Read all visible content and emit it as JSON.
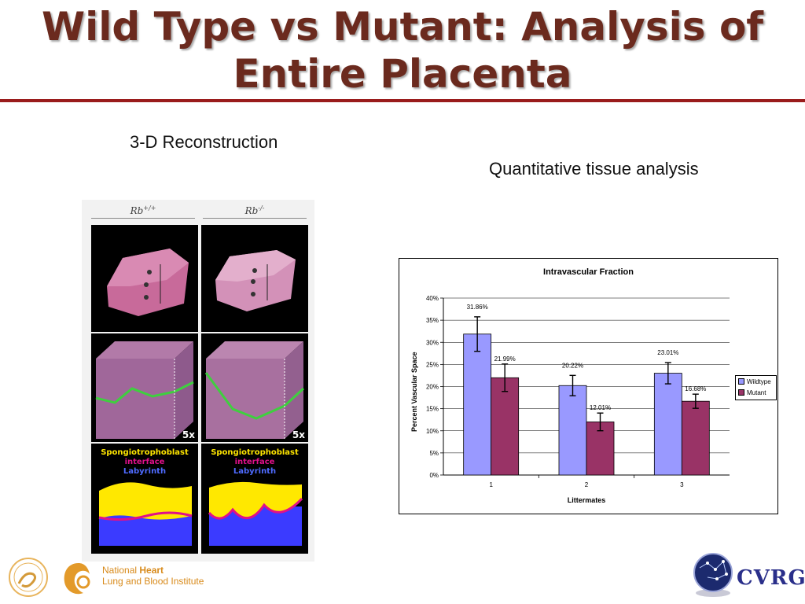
{
  "slide": {
    "title_line1": "Wild Type vs Mutant: Analysis of",
    "title_line2": "Entire Placenta",
    "label_3d": "3-D Reconstruction",
    "label_quant": "Quantitative tissue analysis"
  },
  "figure": {
    "col_wt_base": "Rb",
    "col_wt_sup": "+/+",
    "col_mut_base": "Rb",
    "col_mut_sup": "-/-",
    "scale_left": "5x",
    "scale_right": "5x",
    "legend_spongio": "Spongiotrophoblast",
    "legend_interface": "interface",
    "legend_labyrinth": "Labyrinth"
  },
  "colors": {
    "title": "#6b2a1e",
    "rule": "#9a1c1c",
    "wildtype": "#9999ff",
    "mutant": "#993366"
  },
  "chart_data": {
    "type": "bar",
    "title": "Intravascular Fraction",
    "xlabel": "Littermates",
    "ylabel": "Percent Vascular Space",
    "categories": [
      "1",
      "2",
      "3"
    ],
    "ylim": [
      0,
      40
    ],
    "yticks": [
      "0%",
      "5%",
      "10%",
      "15%",
      "20%",
      "25%",
      "30%",
      "35%",
      "40%"
    ],
    "grid": true,
    "legend_position": "right",
    "series": [
      {
        "name": "Wildtype",
        "values": [
          31.86,
          20.22,
          23.01
        ],
        "labels": [
          "31.86%",
          "20.22%",
          "23.01%"
        ],
        "error": [
          3.9,
          2.3,
          2.4
        ]
      },
      {
        "name": "Mutant",
        "values": [
          21.99,
          12.01,
          16.68
        ],
        "labels": [
          "21.99%",
          "12.01%",
          "16.68%"
        ],
        "error": [
          3.1,
          2.0,
          1.6
        ]
      }
    ]
  },
  "logos": {
    "nhlbi_line1_a": "National ",
    "nhlbi_line1_b": "Heart",
    "nhlbi_line2": "Lung and Blood Institute",
    "cvrg": "CVRG"
  }
}
